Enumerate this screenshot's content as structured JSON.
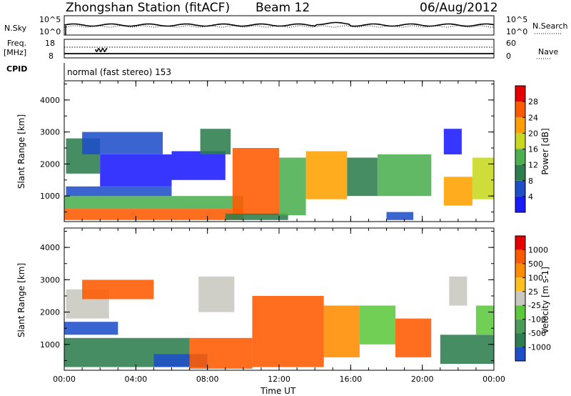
{
  "header": {
    "station": "Zhongshan Station (fitACF)",
    "beam": "Beam 12",
    "date": "06/Aug/2012",
    "cpid_label": "CPID",
    "cpid_value": "normal (fast stereo) 153"
  },
  "strip_panels": {
    "nsky": {
      "left_label": "N.Sky",
      "right_label": "N.Search",
      "left_ticks": [
        "10^5",
        "10^0"
      ],
      "right_ticks": [
        "10^5",
        "10^0"
      ]
    },
    "freq": {
      "left_label_1": "Freq.",
      "left_label_2": "[MHz]",
      "right_label": "Nave",
      "left_ticks": [
        "18",
        "8"
      ],
      "right_ticks": [
        "60",
        "0"
      ]
    }
  },
  "axes": {
    "xlabel": "Time UT",
    "ylabel": "Slant Range [km]",
    "x_ticks": [
      "00:00",
      "04:00",
      "08:00",
      "12:00",
      "16:00",
      "20:00",
      "00:00"
    ],
    "y_ticks": [
      "4000",
      "3000",
      "2000",
      "1000"
    ]
  },
  "chart_data": [
    {
      "type": "heatmap",
      "quantity": "Power",
      "colorbar_label": "Power [dB]",
      "colorbar_ticks": [
        "28",
        "24",
        "20",
        "16",
        "12",
        "8",
        "4"
      ],
      "xlim_hours": [
        0,
        24
      ],
      "ylim_km": [
        200,
        4600
      ],
      "colors": [
        "#1a1aff",
        "#1f4fc8",
        "#2e7d4f",
        "#4caf50",
        "#c8d820",
        "#ffa000",
        "#ff5a00",
        "#e60000"
      ],
      "regions": [
        {
          "t0": 0.0,
          "t1": 10.0,
          "r0": 250,
          "r1": 600,
          "level": 6
        },
        {
          "t0": 0.0,
          "t1": 10.0,
          "r0": 600,
          "r1": 1000,
          "level": 3
        },
        {
          "t0": 0.1,
          "t1": 6.0,
          "r0": 1000,
          "r1": 1300,
          "level": 1
        },
        {
          "t0": 0.1,
          "t1": 2.0,
          "r0": 1700,
          "r1": 2800,
          "level": 2
        },
        {
          "t0": 2.0,
          "t1": 6.0,
          "r0": 1300,
          "r1": 2300,
          "level": 0
        },
        {
          "t0": 1.0,
          "t1": 5.5,
          "r0": 2300,
          "r1": 3000,
          "level": 1
        },
        {
          "t0": 6.0,
          "t1": 9.0,
          "r0": 1500,
          "r1": 2400,
          "level": 0
        },
        {
          "t0": 7.6,
          "t1": 9.3,
          "r0": 2300,
          "r1": 3100,
          "level": 2
        },
        {
          "t0": 9.4,
          "t1": 12.0,
          "r0": 400,
          "r1": 2500,
          "level": 6
        },
        {
          "t0": 9.0,
          "t1": 12.5,
          "r0": 250,
          "r1": 450,
          "level": 2
        },
        {
          "t0": 12.0,
          "t1": 13.5,
          "r0": 400,
          "r1": 2200,
          "level": 3
        },
        {
          "t0": 13.5,
          "t1": 15.8,
          "r0": 900,
          "r1": 2400,
          "level": 5
        },
        {
          "t0": 15.8,
          "t1": 17.5,
          "r0": 1000,
          "r1": 2200,
          "level": 2
        },
        {
          "t0": 17.5,
          "t1": 20.5,
          "r0": 1000,
          "r1": 2300,
          "level": 3
        },
        {
          "t0": 18.0,
          "t1": 19.5,
          "r0": 250,
          "r1": 500,
          "level": 1
        },
        {
          "t0": 21.2,
          "t1": 22.2,
          "r0": 2300,
          "r1": 3100,
          "level": 0
        },
        {
          "t0": 21.2,
          "t1": 22.8,
          "r0": 700,
          "r1": 1600,
          "level": 5
        },
        {
          "t0": 22.8,
          "t1": 24.0,
          "r0": 900,
          "r1": 2200,
          "level": 4
        }
      ]
    },
    {
      "type": "heatmap",
      "quantity": "Velocity",
      "colorbar_label": "Velocity [m s-1]",
      "colorbar_ticks": [
        "1000",
        "500",
        "100",
        "25",
        "-25",
        "-100",
        "-500",
        "-1000"
      ],
      "xlim_hours": [
        0,
        24
      ],
      "ylim_km": [
        200,
        4600
      ],
      "colors": [
        "#1f4fc8",
        "#2e7d4f",
        "#4a9a5a",
        "#5cc83c",
        "#c8c8c0",
        "#ffc020",
        "#ff8c00",
        "#ff5a00",
        "#e60000"
      ],
      "regions": [
        {
          "t0": 0.0,
          "t1": 7.0,
          "r0": 300,
          "r1": 1200,
          "level": 1
        },
        {
          "t0": 0.0,
          "t1": 3.0,
          "r0": 1300,
          "r1": 1700,
          "level": 0
        },
        {
          "t0": 0.1,
          "t1": 2.5,
          "r0": 1800,
          "r1": 2700,
          "level": 4
        },
        {
          "t0": 1.0,
          "t1": 5.0,
          "r0": 2400,
          "r1": 3000,
          "level": 7
        },
        {
          "t0": 5.0,
          "t1": 8.0,
          "r0": 300,
          "r1": 700,
          "level": 0
        },
        {
          "t0": 7.5,
          "t1": 9.5,
          "r0": 2000,
          "r1": 3100,
          "level": 4
        },
        {
          "t0": 7.0,
          "t1": 10.5,
          "r0": 250,
          "r1": 1200,
          "level": 7
        },
        {
          "t0": 10.5,
          "t1": 14.5,
          "r0": 300,
          "r1": 2500,
          "level": 7
        },
        {
          "t0": 14.5,
          "t1": 16.5,
          "r0": 600,
          "r1": 2200,
          "level": 6
        },
        {
          "t0": 16.5,
          "t1": 18.5,
          "r0": 1000,
          "r1": 2200,
          "level": 3
        },
        {
          "t0": 18.5,
          "t1": 20.5,
          "r0": 600,
          "r1": 1800,
          "level": 7
        },
        {
          "t0": 21.0,
          "t1": 24.0,
          "r0": 400,
          "r1": 1300,
          "level": 1
        },
        {
          "t0": 21.5,
          "t1": 22.5,
          "r0": 2200,
          "r1": 3100,
          "level": 4
        },
        {
          "t0": 23.0,
          "t1": 24.0,
          "r0": 1300,
          "r1": 2200,
          "level": 3
        }
      ]
    }
  ]
}
